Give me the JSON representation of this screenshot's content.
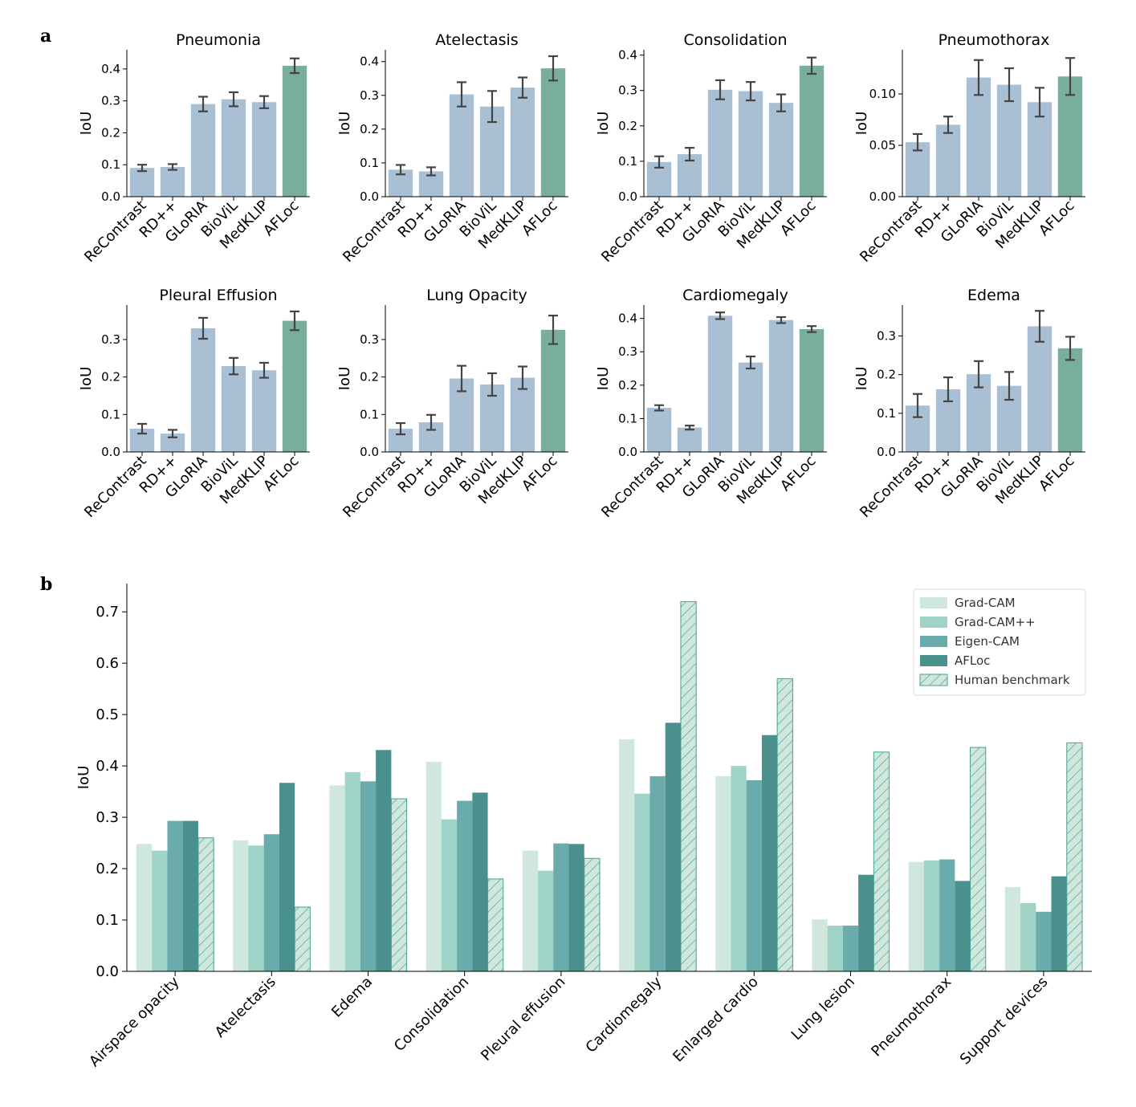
{
  "panel_labels": [
    "a",
    "b"
  ],
  "chart_data": [
    {
      "type": "bar",
      "panel": "a",
      "title": "Pneumonia",
      "ylabel": "IoU",
      "categories": [
        "ReContrast",
        "RD++",
        "GLoRIA",
        "BioViL",
        "MedKLIP",
        "AFLoc"
      ],
      "values": [
        0.09,
        0.093,
        0.29,
        0.305,
        0.296,
        0.41
      ],
      "errors": [
        0.01,
        0.009,
        0.023,
        0.022,
        0.019,
        0.023
      ],
      "ylim": [
        0,
        0.46
      ],
      "yticks": [
        0.0,
        0.1,
        0.2,
        0.3,
        0.4
      ],
      "ytick_labels": [
        "0.0",
        "0.1",
        "0.2",
        "0.3",
        "0.4"
      ]
    },
    {
      "type": "bar",
      "panel": "a",
      "title": "Atelectasis",
      "ylabel": "IoU",
      "categories": [
        "ReContrast",
        "RD++",
        "GLoRIA",
        "BioViL",
        "MedKLIP",
        "AFLoc"
      ],
      "values": [
        0.08,
        0.075,
        0.303,
        0.267,
        0.323,
        0.38
      ],
      "errors": [
        0.014,
        0.012,
        0.036,
        0.046,
        0.03,
        0.036
      ],
      "ylim": [
        0,
        0.435
      ],
      "yticks": [
        0.0,
        0.1,
        0.2,
        0.3,
        0.4
      ],
      "ytick_labels": [
        "0.0",
        "0.1",
        "0.2",
        "0.3",
        "0.4"
      ]
    },
    {
      "type": "bar",
      "panel": "a",
      "title": "Consolidation",
      "ylabel": "IoU",
      "categories": [
        "ReContrast",
        "RD++",
        "GLoRIA",
        "BioViL",
        "MedKLIP",
        "AFLoc"
      ],
      "values": [
        0.098,
        0.12,
        0.302,
        0.298,
        0.265,
        0.37
      ],
      "errors": [
        0.016,
        0.018,
        0.027,
        0.026,
        0.024,
        0.023
      ],
      "ylim": [
        0,
        0.415
      ],
      "yticks": [
        0.0,
        0.1,
        0.2,
        0.3,
        0.4
      ],
      "ytick_labels": [
        "0.0",
        "0.1",
        "0.2",
        "0.3",
        "0.4"
      ]
    },
    {
      "type": "bar",
      "panel": "a",
      "title": "Pneumothorax",
      "ylabel": "IoU",
      "categories": [
        "ReContrast",
        "RD++",
        "GLoRIA",
        "BioViL",
        "MedKLIP",
        "AFLoc"
      ],
      "values": [
        0.053,
        0.07,
        0.116,
        0.109,
        0.092,
        0.117
      ],
      "errors": [
        0.008,
        0.008,
        0.017,
        0.016,
        0.014,
        0.018
      ],
      "ylim": [
        0,
        0.143
      ],
      "yticks": [
        0.0,
        0.05,
        0.1
      ],
      "ytick_labels": [
        "0.00",
        "0.05",
        "0.10"
      ]
    },
    {
      "type": "bar",
      "panel": "a",
      "title": "Pleural Effusion",
      "ylabel": "IoU",
      "categories": [
        "ReContrast",
        "RD++",
        "GLoRIA",
        "BioViL",
        "MedKLIP",
        "AFLoc"
      ],
      "values": [
        0.062,
        0.049,
        0.33,
        0.229,
        0.218,
        0.35
      ],
      "errors": [
        0.013,
        0.01,
        0.028,
        0.022,
        0.02,
        0.025
      ],
      "ylim": [
        0,
        0.392
      ],
      "yticks": [
        0.0,
        0.1,
        0.2,
        0.3
      ],
      "ytick_labels": [
        "0.0",
        "0.1",
        "0.2",
        "0.3"
      ]
    },
    {
      "type": "bar",
      "panel": "a",
      "title": "Lung Opacity",
      "ylabel": "IoU",
      "categories": [
        "ReContrast",
        "RD++",
        "GLoRIA",
        "BioViL",
        "MedKLIP",
        "AFLoc"
      ],
      "values": [
        0.062,
        0.079,
        0.196,
        0.18,
        0.198,
        0.326
      ],
      "errors": [
        0.015,
        0.02,
        0.034,
        0.03,
        0.03,
        0.038
      ],
      "ylim": [
        0,
        0.392
      ],
      "yticks": [
        0.0,
        0.1,
        0.2,
        0.3
      ],
      "ytick_labels": [
        "0.0",
        "0.1",
        "0.2",
        "0.3"
      ]
    },
    {
      "type": "bar",
      "panel": "a",
      "title": "Cardiomegaly",
      "ylabel": "IoU",
      "categories": [
        "ReContrast",
        "RD++",
        "GLoRIA",
        "BioViL",
        "MedKLIP",
        "AFLoc"
      ],
      "values": [
        0.132,
        0.073,
        0.408,
        0.268,
        0.395,
        0.368
      ],
      "errors": [
        0.008,
        0.006,
        0.01,
        0.018,
        0.009,
        0.009
      ],
      "ylim": [
        0,
        0.44
      ],
      "yticks": [
        0.0,
        0.1,
        0.2,
        0.3,
        0.4
      ],
      "ytick_labels": [
        "0.0",
        "0.1",
        "0.2",
        "0.3",
        "0.4"
      ]
    },
    {
      "type": "bar",
      "panel": "a",
      "title": "Edema",
      "ylabel": "IoU",
      "categories": [
        "ReContrast",
        "RD++",
        "GLoRIA",
        "BioViL",
        "MedKLIP",
        "AFLoc"
      ],
      "values": [
        0.12,
        0.162,
        0.201,
        0.171,
        0.325,
        0.268
      ],
      "errors": [
        0.03,
        0.031,
        0.034,
        0.036,
        0.04,
        0.03
      ],
      "ylim": [
        0,
        0.38
      ],
      "yticks": [
        0.0,
        0.1,
        0.2,
        0.3
      ],
      "ytick_labels": [
        "0.0",
        "0.1",
        "0.2",
        "0.3"
      ]
    },
    {
      "type": "bar",
      "panel": "b",
      "ylabel": "IoU",
      "categories": [
        "Airspace opacity",
        "Atelectasis",
        "Edema",
        "Consolidation",
        "Pleural effusion",
        "Cardiomegaly",
        "Enlarged cardio",
        "Lung lesion",
        "Pneumothorax",
        "Support devices"
      ],
      "series": [
        {
          "name": "Grad-CAM",
          "color": "#cfe7dc",
          "values": [
            0.248,
            0.255,
            0.362,
            0.408,
            0.235,
            0.452,
            0.38,
            0.101,
            0.213,
            0.164
          ]
        },
        {
          "name": "Grad-CAM++",
          "color": "#9fd3c7",
          "values": [
            0.235,
            0.245,
            0.388,
            0.296,
            0.196,
            0.346,
            0.4,
            0.089,
            0.216,
            0.133
          ]
        },
        {
          "name": "Eigen-CAM",
          "color": "#6aabab",
          "values": [
            0.293,
            0.267,
            0.37,
            0.332,
            0.249,
            0.38,
            0.372,
            0.089,
            0.218,
            0.116
          ]
        },
        {
          "name": "AFLoc",
          "color": "#4a908c",
          "values": [
            0.293,
            0.367,
            0.431,
            0.348,
            0.248,
            0.484,
            0.46,
            0.188,
            0.176,
            0.185
          ]
        },
        {
          "name": "Human benchmark",
          "color": "#cfe7dc",
          "hatch": true,
          "values": [
            0.26,
            0.125,
            0.336,
            0.18,
            0.22,
            0.72,
            0.57,
            0.427,
            0.436,
            0.445
          ]
        }
      ],
      "ylim": [
        0,
        0.755
      ],
      "yticks": [
        0.0,
        0.1,
        0.2,
        0.3,
        0.4,
        0.5,
        0.6,
        0.7
      ],
      "ytick_labels": [
        "0.0",
        "0.1",
        "0.2",
        "0.3",
        "0.4",
        "0.5",
        "0.6",
        "0.7"
      ],
      "legend": "top-right"
    }
  ],
  "colors": {
    "baseline_bar": "#a9bfd4",
    "highlight_bar": "#79ad9c",
    "error_bar": "#444444",
    "hatch_stroke": "#46a096"
  }
}
